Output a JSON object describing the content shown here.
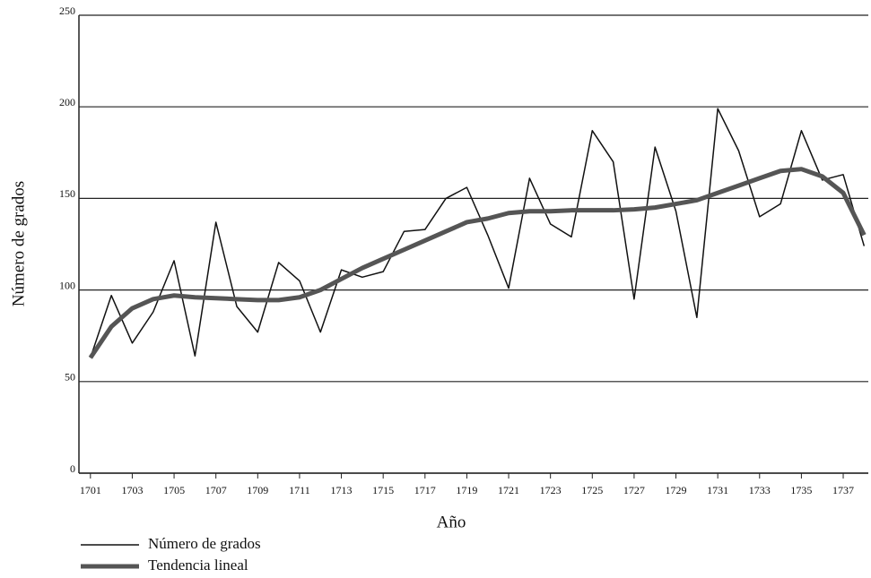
{
  "chart_data": {
    "type": "line",
    "xlabel": "Año",
    "ylabel": "Número de grados",
    "x": [
      1701,
      1702,
      1703,
      1704,
      1705,
      1706,
      1707,
      1708,
      1709,
      1710,
      1711,
      1712,
      1713,
      1714,
      1715,
      1716,
      1717,
      1718,
      1719,
      1720,
      1721,
      1722,
      1723,
      1724,
      1725,
      1726,
      1727,
      1728,
      1729,
      1730,
      1731,
      1732,
      1733,
      1734,
      1735,
      1736,
      1737,
      1738
    ],
    "series": [
      {
        "name": "Número de grados",
        "color": "#111111",
        "width": 1.5,
        "values": [
          63,
          97,
          71,
          88,
          116,
          64,
          137,
          91,
          77,
          115,
          105,
          77,
          111,
          107,
          110,
          132,
          133,
          150,
          156,
          130,
          101,
          161,
          136,
          129,
          187,
          170,
          95,
          178,
          143,
          85,
          199,
          176,
          140,
          147,
          187,
          160,
          163,
          124
        ]
      },
      {
        "name": "Tendencia lineal",
        "color": "#555555",
        "width": 5,
        "values": [
          63,
          80,
          90,
          95,
          97,
          96,
          95.5,
          95,
          94.5,
          94.5,
          96,
          100,
          106,
          112,
          117,
          122,
          127,
          132,
          137,
          139,
          142,
          143,
          143,
          143.5,
          143.5,
          143.5,
          144,
          145,
          147,
          149,
          153,
          157,
          161,
          165,
          166,
          162,
          153,
          130
        ]
      }
    ],
    "xlim": [
      1700.45,
      1738.2
    ],
    "xticks": [
      1701,
      1703,
      1705,
      1707,
      1709,
      1711,
      1713,
      1715,
      1717,
      1719,
      1721,
      1723,
      1725,
      1727,
      1729,
      1731,
      1733,
      1735,
      1737
    ],
    "ylim": [
      0,
      250
    ],
    "yticks": [
      0,
      50,
      100,
      150,
      200,
      250
    ],
    "grid": true
  }
}
